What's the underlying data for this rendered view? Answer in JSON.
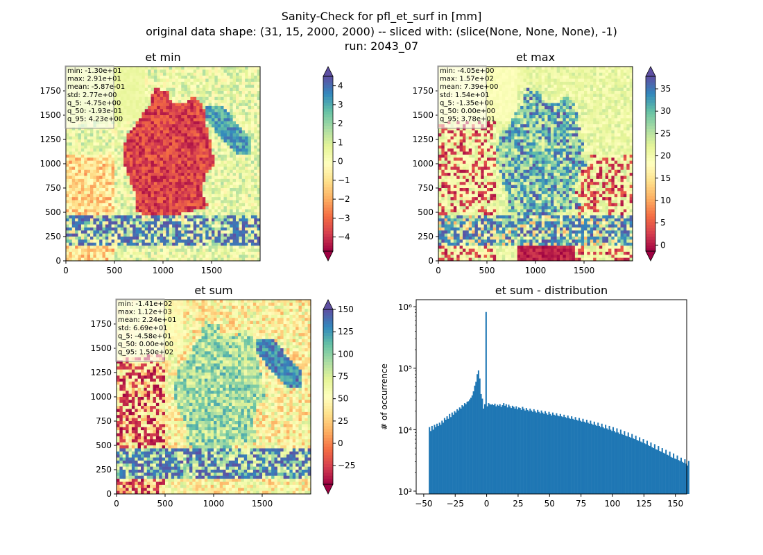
{
  "suptitle": [
    "Sanity-Check for pfl_et_surf in [mm]",
    "original data shape: (31, 15, 2000, 2000) -- sliced with: (slice(None, None, None), -1)",
    "run: 2043_07"
  ],
  "colors": {
    "spectral": [
      "#9e0142",
      "#d53e4f",
      "#f46d43",
      "#fdae61",
      "#fee08b",
      "#ffffbf",
      "#e6f598",
      "#abdda4",
      "#66c2a5",
      "#3288bd",
      "#5e4fa2"
    ],
    "hist": "#1f77b4"
  },
  "chart_data": [
    {
      "type": "heatmap",
      "title": "et min",
      "x_ticks": [
        "0",
        "500",
        "1000",
        "1500"
      ],
      "y_ticks": [
        "0",
        "250",
        "500",
        "750",
        "1000",
        "1250",
        "1500",
        "1750"
      ],
      "xlim": [
        0,
        2000
      ],
      "ylim": [
        0,
        2000
      ],
      "colorbar": {
        "min": -4.75,
        "max": 4.5,
        "ticks": [
          "4",
          "3",
          "2",
          "1",
          "0",
          "−1",
          "−2",
          "−3",
          "−4"
        ],
        "tick_values": [
          4,
          3,
          2,
          1,
          0,
          -1,
          -2,
          -3,
          -4
        ],
        "extend": "both"
      },
      "stats": [
        "min: -1.30e+01",
        "max: 2.91e+01",
        "mean: -5.87e-01",
        "std: 2.77e+00",
        "q_5: -4.75e+00",
        "q_50: -1.93e-01",
        "q_95: 4.23e+00"
      ]
    },
    {
      "type": "heatmap",
      "title": "et max",
      "x_ticks": [
        "0",
        "500",
        "1000",
        "1500"
      ],
      "y_ticks": [
        "0",
        "250",
        "500",
        "750",
        "1000",
        "1250",
        "1500",
        "1750"
      ],
      "xlim": [
        0,
        2000
      ],
      "ylim": [
        0,
        2000
      ],
      "colorbar": {
        "min": -1.35,
        "max": 37.8,
        "ticks": [
          "35",
          "30",
          "25",
          "20",
          "15",
          "10",
          "5",
          "0"
        ],
        "tick_values": [
          35,
          30,
          25,
          20,
          15,
          10,
          5,
          0
        ],
        "extend": "both"
      },
      "stats": [
        "min: -4.05e+00",
        "max: 1.57e+02",
        "mean: 7.39e+00",
        "std: 1.54e+01",
        "q_5: -1.35e+00",
        "q_50: 0.00e+00",
        "q_95: 3.78e+01"
      ]
    },
    {
      "type": "heatmap",
      "title": "et sum",
      "x_ticks": [
        "0",
        "500",
        "1000",
        "1500"
      ],
      "y_ticks": [
        "0",
        "250",
        "500",
        "750",
        "1000",
        "1250",
        "1500",
        "1750"
      ],
      "xlim": [
        0,
        2000
      ],
      "ylim": [
        0,
        2000
      ],
      "colorbar": {
        "min": -45.8,
        "max": 150,
        "ticks": [
          "150",
          "125",
          "100",
          "75",
          "50",
          "25",
          "0",
          "−25"
        ],
        "tick_values": [
          150,
          125,
          100,
          75,
          50,
          25,
          0,
          -25
        ],
        "extend": "both"
      },
      "stats": [
        "min: -1.41e+02",
        "max: 1.12e+03",
        "mean: 2.24e+01",
        "std: 6.69e+01",
        "q_5: -4.58e+01",
        "q_50: 0.00e+00",
        "q_95: 1.50e+02"
      ]
    },
    {
      "type": "bar",
      "title": "et sum - distribution",
      "ylabel": "# of occurrence",
      "yscale": "log",
      "ylim": [
        900,
        1300000
      ],
      "xlim": [
        -56,
        159
      ],
      "x_ticks": [
        "−50",
        "−25",
        "0",
        "25",
        "50",
        "75",
        "100",
        "125",
        "150"
      ],
      "x_tick_values": [
        -50,
        -25,
        0,
        25,
        50,
        75,
        100,
        125,
        150
      ],
      "y_ticks": [
        "10³",
        "10⁴",
        "10⁵",
        "10⁶"
      ],
      "y_tick_values": [
        1000,
        10000,
        100000,
        1000000
      ],
      "bin_start": -46,
      "bin_width": 1,
      "values": [
        11000,
        9500,
        11500,
        10000,
        12000,
        11000,
        12500,
        11500,
        13000,
        12000,
        14000,
        13000,
        15500,
        14500,
        16500,
        15000,
        18000,
        16000,
        19000,
        17500,
        20000,
        19000,
        21500,
        20500,
        23000,
        22000,
        25000,
        24000,
        27000,
        26000,
        28500,
        29000,
        31000,
        33000,
        36000,
        42000,
        52000,
        60000,
        80000,
        92000,
        68000,
        38000,
        32000,
        22000,
        26000,
        820000,
        24000,
        27000,
        26000,
        25500,
        26000,
        25000,
        26500,
        24000,
        25500,
        24500,
        26000,
        23500,
        25000,
        27000,
        24500,
        26000,
        23000,
        25500,
        24000,
        22500,
        24500,
        23500,
        22000,
        24000,
        21500,
        23000,
        22500,
        21000,
        23500,
        22000,
        20500,
        22500,
        21000,
        20000,
        22000,
        20500,
        19500,
        21500,
        20000,
        19000,
        21000,
        19500,
        18500,
        20500,
        19000,
        18000,
        20000,
        18500,
        17500,
        19500,
        18000,
        17000,
        19000,
        17500,
        17000,
        18500,
        17000,
        16500,
        18000,
        16500,
        16000,
        17500,
        16000,
        15500,
        17000,
        15500,
        15000,
        16500,
        15000,
        14500,
        16000,
        14500,
        14000,
        15500,
        14000,
        13500,
        15000,
        13500,
        13000,
        14500,
        13000,
        12500,
        14000,
        12500,
        12000,
        13500,
        12000,
        11500,
        13000,
        11500,
        11000,
        12500,
        11000,
        10500,
        12000,
        10500,
        10000,
        11500,
        10000,
        9500,
        11000,
        9500,
        9000,
        10500,
        9000,
        8500,
        10000,
        8500,
        8200,
        9500,
        8000,
        7800,
        9000,
        7600,
        7400,
        8500,
        7200,
        7000,
        8000,
        6800,
        6600,
        7500,
        6400,
        6200,
        7000,
        6000,
        5800,
        6600,
        5600,
        5400,
        6200,
        5200,
        5000,
        5800,
        4800,
        4700,
        5400,
        4500,
        4400,
        5000,
        4200,
        4100,
        4700,
        3900,
        3800,
        4400,
        3600,
        3500,
        4100,
        3400,
        3300,
        3800,
        3200,
        3100,
        3500,
        3000,
        2900,
        3300,
        2800,
        2600,
        3100
      ]
    }
  ]
}
